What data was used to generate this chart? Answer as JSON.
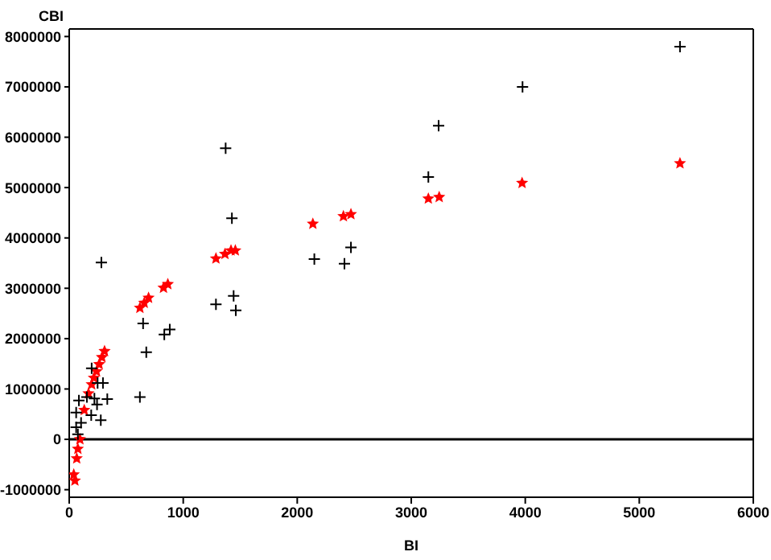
{
  "chart_data": {
    "type": "scatter",
    "xlabel": "BI",
    "ylabel": "CBI",
    "xlim": [
      0,
      6000
    ],
    "ylim": [
      -1150000,
      8150000
    ],
    "xticks": [
      0,
      1000,
      2000,
      3000,
      4000,
      5000,
      6000
    ],
    "yticks": [
      -1000000,
      0,
      1000000,
      2000000,
      3000000,
      4000000,
      5000000,
      6000000,
      7000000,
      8000000
    ],
    "grid": false,
    "ref_lines": [
      {
        "axis": "y",
        "value": 0,
        "color": "#000000"
      }
    ],
    "series": [
      {
        "color": "#000000",
        "marker": "cross",
        "x": [
          1372,
          1427,
          282,
          1287,
          1442,
          1461,
          648,
          676,
          834,
          882,
          620,
          197,
          249,
          296,
          155,
          221,
          334,
          85,
          244,
          193,
          277,
          61,
          61,
          104,
          76,
          2150,
          2414,
          2471,
          3150,
          3240,
          3976,
          5357
        ],
        "values": [
          5780000,
          4390000,
          3510000,
          2680000,
          2850000,
          2560000,
          2300000,
          1730000,
          2080000,
          2180000,
          840000,
          1410000,
          1120000,
          1120000,
          840000,
          810000,
          800000,
          770000,
          690000,
          480000,
          380000,
          530000,
          240000,
          330000,
          100000,
          3580000,
          3490000,
          3810000,
          5210000,
          6230000,
          7000000,
          7800000
        ]
      },
      {
        "color": "#ff0000",
        "marker": "star",
        "x": [
          40,
          50,
          76,
          66,
          94,
          132,
          169,
          197,
          216,
          240,
          263,
          287,
          310,
          620,
          658,
          696,
          827,
          865,
          1287,
          1366,
          1419,
          1457,
          2137,
          2405,
          2471,
          3150,
          3245,
          3972,
          5357
        ],
        "values": [
          -700000,
          -820000,
          -190000,
          -380000,
          0,
          580000,
          910000,
          1090000,
          1220000,
          1350000,
          1490000,
          1630000,
          1750000,
          2610000,
          2710000,
          2810000,
          3010000,
          3080000,
          3590000,
          3680000,
          3750000,
          3750000,
          4280000,
          4430000,
          4470000,
          4780000,
          4810000,
          5090000,
          5480000
        ]
      }
    ]
  }
}
